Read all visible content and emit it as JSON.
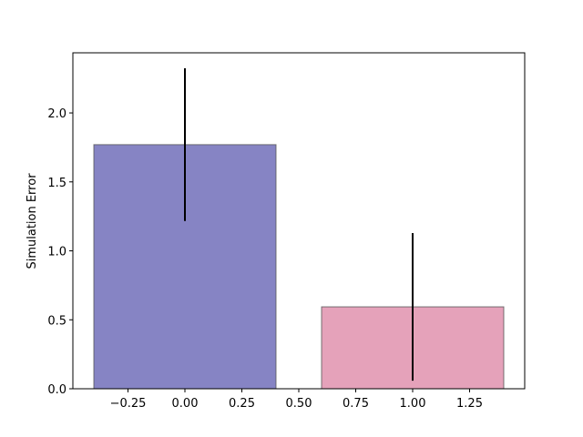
{
  "chart_data": {
    "type": "bar",
    "ylabel": "Simulation Error",
    "x": [
      0,
      1
    ],
    "values": [
      1.77,
      0.594
    ],
    "errors": [
      0.554,
      0.535
    ],
    "colors": [
      "#8684c4",
      "#e5a2ba"
    ],
    "xlim": [
      -0.492,
      1.492
    ],
    "xticks": [
      {
        "value": -0.25,
        "label": "−0.25"
      },
      {
        "value": 0,
        "label": "0.00"
      },
      {
        "value": 0.25,
        "label": "0.25"
      },
      {
        "value": 0.5,
        "label": "0.50"
      },
      {
        "value": 0.75,
        "label": "0.75"
      },
      {
        "value": 1,
        "label": "1.00"
      },
      {
        "value": 1.25,
        "label": "1.25"
      }
    ],
    "ylim": [
      0,
      2.436
    ],
    "yticks": [
      {
        "value": 0,
        "label": "0.0"
      },
      {
        "value": 0.5,
        "label": "0.5"
      },
      {
        "value": 1,
        "label": "1.0"
      },
      {
        "value": 1.5,
        "label": "1.5"
      },
      {
        "value": 2,
        "label": "2.0"
      }
    ]
  }
}
